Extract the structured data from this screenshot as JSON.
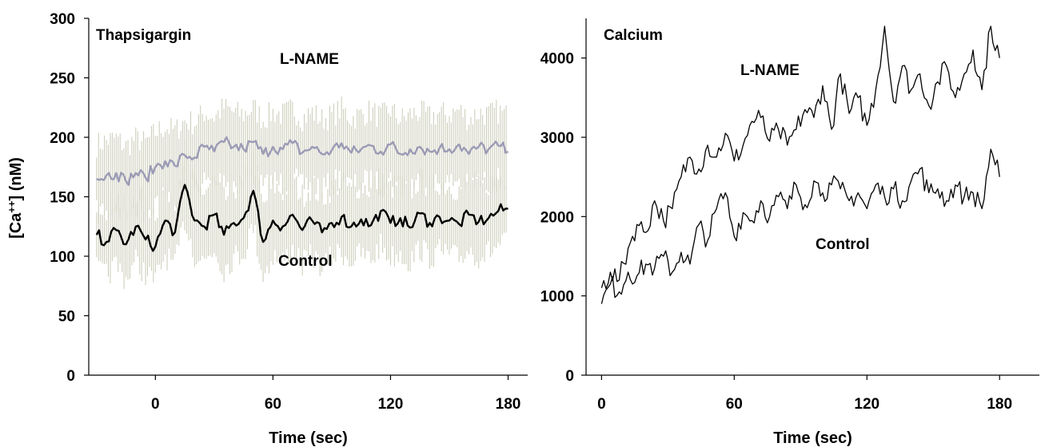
{
  "chart_data": [
    {
      "type": "line",
      "title": "Thapsigargin",
      "xlabel": "Time (sec)",
      "ylabel": "[Ca++] (nM)",
      "xlim": [
        -34,
        190
      ],
      "ylim": [
        0,
        300
      ],
      "xticks": [
        "0",
        "60",
        "120",
        "180"
      ],
      "yticks": [
        "0",
        "50",
        "100",
        "150",
        "200",
        "250",
        "300"
      ],
      "annotations": [
        "L-NAME",
        "Control"
      ],
      "error_bars": true,
      "series": [
        {
          "name": "L-NAME",
          "color": "#9b9bb6",
          "x": [
            -30,
            -25,
            -20,
            -15,
            -10,
            -5,
            0,
            5,
            10,
            15,
            20,
            25,
            30,
            35,
            40,
            45,
            50,
            55,
            60,
            65,
            70,
            75,
            80,
            85,
            90,
            95,
            100,
            105,
            110,
            115,
            120,
            125,
            130,
            135,
            140,
            145,
            150,
            155,
            160,
            165,
            170,
            175,
            180
          ],
          "values": [
            165,
            168,
            170,
            163,
            170,
            166,
            175,
            180,
            176,
            185,
            183,
            192,
            188,
            196,
            192,
            190,
            196,
            186,
            192,
            190,
            195,
            187,
            192,
            186,
            189,
            195,
            187,
            190,
            193,
            188,
            194,
            186,
            190,
            192,
            188,
            191,
            190,
            194,
            186,
            192,
            190,
            193,
            188
          ]
        },
        {
          "name": "Control",
          "color": "#000000",
          "x": [
            -30,
            -25,
            -20,
            -15,
            -10,
            -5,
            0,
            5,
            10,
            15,
            20,
            25,
            30,
            35,
            40,
            45,
            50,
            55,
            60,
            65,
            70,
            75,
            80,
            85,
            90,
            95,
            100,
            105,
            110,
            115,
            120,
            125,
            130,
            135,
            140,
            145,
            150,
            155,
            160,
            165,
            170,
            175,
            180
          ],
          "values": [
            118,
            112,
            122,
            110,
            125,
            114,
            108,
            130,
            120,
            160,
            130,
            125,
            135,
            118,
            128,
            132,
            155,
            112,
            130,
            125,
            135,
            122,
            130,
            120,
            128,
            133,
            125,
            131,
            126,
            138,
            128,
            132,
            124,
            136,
            128,
            133,
            130,
            127,
            135,
            129,
            132,
            138,
            140
          ]
        }
      ]
    },
    {
      "type": "line",
      "title": "Calcium",
      "xlabel": "Time (sec)",
      "ylabel": "",
      "xlim": [
        -7,
        198
      ],
      "ylim": [
        0,
        4500
      ],
      "xticks": [
        "0",
        "60",
        "120",
        "180"
      ],
      "yticks": [
        "0",
        "1000",
        "2000",
        "3000",
        "4000"
      ],
      "annotations": [
        "L-NAME",
        "Control"
      ],
      "series": [
        {
          "name": "L-NAME",
          "color": "#000000",
          "x": [
            0,
            4,
            8,
            12,
            16,
            20,
            24,
            28,
            32,
            36,
            40,
            44,
            48,
            52,
            56,
            60,
            64,
            68,
            72,
            76,
            80,
            84,
            88,
            92,
            96,
            100,
            104,
            108,
            112,
            116,
            120,
            124,
            128,
            132,
            136,
            140,
            144,
            148,
            152,
            156,
            160,
            164,
            168,
            172,
            176,
            180
          ],
          "values": [
            1100,
            1300,
            1200,
            1600,
            1900,
            1800,
            2200,
            1950,
            2100,
            2500,
            2750,
            2600,
            2900,
            2750,
            3050,
            2700,
            2900,
            3200,
            3250,
            2950,
            3100,
            2900,
            3100,
            3350,
            3250,
            3650,
            3100,
            3800,
            3300,
            3500,
            3150,
            3600,
            4400,
            3450,
            3900,
            3600,
            3800,
            3400,
            3700,
            3900,
            3500,
            3800,
            4100,
            3600,
            4400,
            4000
          ]
        },
        {
          "name": "Control",
          "color": "#000000",
          "x": [
            0,
            4,
            8,
            12,
            16,
            20,
            24,
            28,
            32,
            36,
            40,
            44,
            48,
            52,
            56,
            60,
            64,
            68,
            72,
            76,
            80,
            84,
            88,
            92,
            96,
            100,
            104,
            108,
            112,
            116,
            120,
            124,
            128,
            132,
            136,
            140,
            144,
            148,
            152,
            156,
            160,
            164,
            168,
            172,
            176,
            180
          ],
          "values": [
            900,
            1150,
            1050,
            1300,
            1250,
            1400,
            1350,
            1500,
            1300,
            1550,
            1400,
            1900,
            1700,
            2100,
            2300,
            1750,
            2050,
            1950,
            2200,
            2000,
            2250,
            2100,
            2400,
            2150,
            2450,
            2300,
            2400,
            2350,
            2200,
            2300,
            2100,
            2400,
            2250,
            2350,
            2200,
            2450,
            2600,
            2300,
            2350,
            2200,
            2400,
            2250,
            2300,
            2100,
            2850,
            2500
          ]
        }
      ]
    }
  ]
}
